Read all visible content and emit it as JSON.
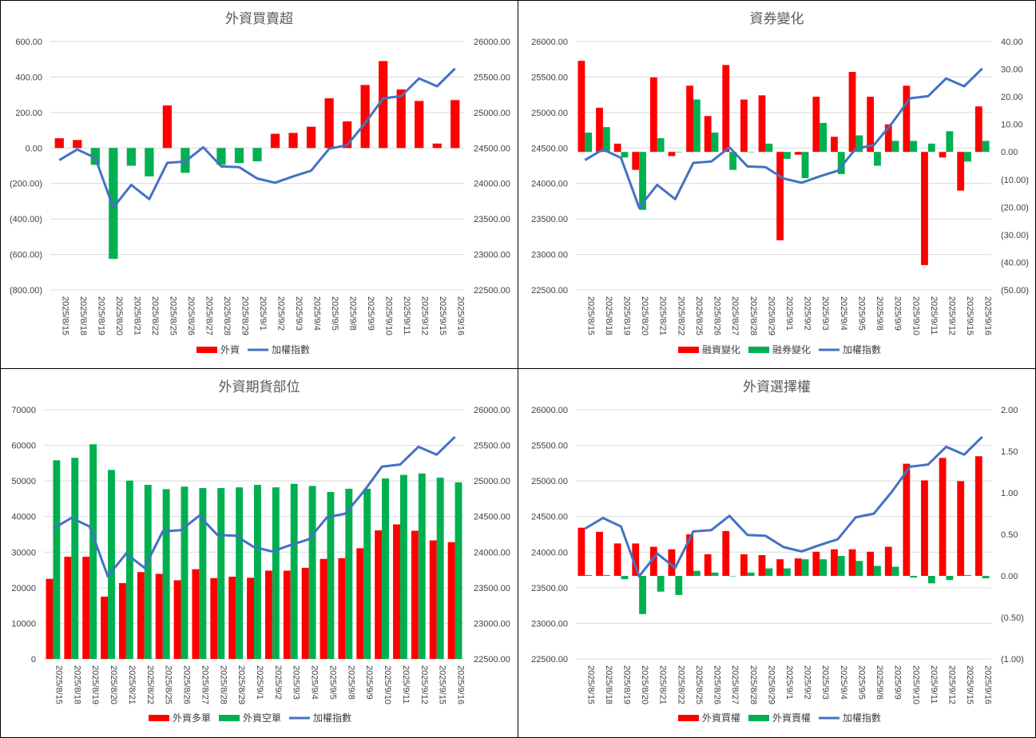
{
  "dates": [
    "2025/8/15",
    "2025/8/18",
    "2025/8/19",
    "2025/8/20",
    "2025/8/21",
    "2025/8/22",
    "2025/8/25",
    "2025/8/26",
    "2025/8/27",
    "2025/8/28",
    "2025/8/29",
    "2025/9/1",
    "2025/9/2",
    "2025/9/3",
    "2025/9/4",
    "2025/9/5",
    "2025/9/8",
    "2025/9/9",
    "2025/9/10",
    "2025/9/11",
    "2025/9/12",
    "2025/9/15",
    "2025/9/16"
  ],
  "colors": {
    "red": "#ff0000",
    "green": "#00b050",
    "blue": "#4472c4",
    "grid": "#d9d9d9",
    "neg_text": "#ff0000"
  },
  "chart_data": [
    {
      "type": "bar",
      "title": "外資買賣超",
      "ylim": [
        -800,
        600
      ],
      "yticks": [
        "600.00",
        "400.00",
        "200.00",
        "0.00",
        "(200.00)",
        "(400.00)",
        "(600.00)",
        "(800.00)"
      ],
      "y2lim": [
        22500,
        26000
      ],
      "y2ticks": [
        "26000.00",
        "25500.00",
        "25000.00",
        "24500.00",
        "24000.00",
        "23500.00",
        "23000.00",
        "22500.00"
      ],
      "bar_mode": "posneg",
      "series": [
        {
          "name": "外資",
          "values": [
            55,
            45,
            -95,
            -625,
            -100,
            -160,
            240,
            -140,
            0,
            -95,
            -85,
            -75,
            80,
            85,
            120,
            280,
            150,
            355,
            490,
            330,
            265,
            25,
            270
          ]
        },
        {
          "name": "加權指數",
          "axis": "right",
          "line": true,
          "values": [
            24330,
            24480,
            24360,
            23660,
            23980,
            23780,
            24290,
            24310,
            24510,
            24240,
            24230,
            24070,
            24010,
            24100,
            24180,
            24490,
            24540,
            24850,
            25200,
            25230,
            25480,
            25370,
            25620
          ]
        }
      ]
    },
    {
      "type": "bar",
      "title": "資券變化",
      "ylim": [
        22500,
        26000
      ],
      "yticks": [
        "26000.00",
        "25500.00",
        "25000.00",
        "24500.00",
        "24000.00",
        "23500.00",
        "23000.00",
        "22500.00"
      ],
      "y2lim": [
        -50,
        40
      ],
      "y2ticks": [
        "40.00",
        "30.00",
        "20.00",
        "10.00",
        "0.00",
        "(10.00)",
        "(20.00)",
        "(30.00)",
        "(40.00)",
        "(50.00)"
      ],
      "series": [
        {
          "name": "融資變化",
          "axis": "right",
          "values": [
            33,
            16,
            3,
            -6.5,
            27,
            -1.5,
            24,
            13,
            31.5,
            19,
            20.5,
            -32,
            -1,
            20,
            5.5,
            29,
            20,
            10,
            24,
            -41,
            -2,
            -14,
            16.5
          ]
        },
        {
          "name": "融券變化",
          "axis": "right",
          "values": [
            7,
            9,
            -2,
            -21,
            5,
            0,
            19,
            7,
            -6.5,
            0,
            3,
            -2.5,
            -9.5,
            10.5,
            -8,
            6,
            -5,
            4,
            4,
            3,
            7.5,
            -3.5,
            4
          ]
        },
        {
          "name": "加權指數",
          "axis": "left",
          "line": true,
          "values": [
            24330,
            24480,
            24360,
            23660,
            23980,
            23780,
            24290,
            24310,
            24510,
            24240,
            24230,
            24070,
            24010,
            24100,
            24180,
            24490,
            24540,
            24850,
            25200,
            25230,
            25480,
            25370,
            25620
          ]
        }
      ]
    },
    {
      "type": "bar",
      "title": "外資期貨部位",
      "ylim": [
        0,
        70000
      ],
      "yticks": [
        "70000",
        "60000",
        "50000",
        "40000",
        "30000",
        "20000",
        "10000",
        "0"
      ],
      "y2lim": [
        22500,
        26000
      ],
      "y2ticks": [
        "26000.00",
        "25500.00",
        "25000.00",
        "24500.00",
        "24000.00",
        "23500.00",
        "23000.00",
        "22500.00"
      ],
      "series": [
        {
          "name": "外資多單",
          "values": [
            22500,
            28700,
            28700,
            17500,
            21300,
            24400,
            23900,
            22100,
            25200,
            22700,
            23100,
            22800,
            24800,
            24800,
            25600,
            28100,
            28300,
            31100,
            36100,
            37800,
            36000,
            33300,
            32800
          ]
        },
        {
          "name": "外資空單",
          "values": [
            55800,
            56500,
            60300,
            53100,
            50100,
            48900,
            47700,
            48400,
            48000,
            48000,
            48200,
            48900,
            48200,
            49200,
            48600,
            46900,
            47800,
            47800,
            50700,
            51700,
            52100,
            50900,
            49600
          ]
        },
        {
          "name": "加權指數",
          "axis": "right",
          "line": true,
          "values": [
            24330,
            24480,
            24360,
            23660,
            23980,
            23780,
            24290,
            24310,
            24510,
            24240,
            24230,
            24070,
            24010,
            24100,
            24180,
            24490,
            24540,
            24850,
            25200,
            25230,
            25480,
            25370,
            25620
          ]
        }
      ]
    },
    {
      "type": "bar",
      "title": "外資選擇權",
      "ylim": [
        22500,
        26000
      ],
      "yticks": [
        "26000.00",
        "25500.00",
        "25000.00",
        "24500.00",
        "24000.00",
        "23500.00",
        "23000.00",
        "22500.00"
      ],
      "y2lim": [
        -1,
        2
      ],
      "y2ticks": [
        "2.00",
        "1.50",
        "1.00",
        "0.50",
        "0.00",
        "(0.50)",
        "(1.00)"
      ],
      "series": [
        {
          "name": "外資買權",
          "axis": "right",
          "values": [
            0.58,
            0.53,
            0.39,
            0.39,
            0.35,
            0.32,
            0.5,
            0.26,
            0.54,
            0.26,
            0.25,
            0.2,
            0.21,
            0.29,
            0.32,
            0.32,
            0.29,
            0.35,
            1.35,
            1.15,
            1.42,
            1.14,
            1.44
          ]
        },
        {
          "name": "外資賣權",
          "axis": "right",
          "values": [
            0.01,
            0.01,
            -0.04,
            -0.46,
            -0.19,
            -0.23,
            0.06,
            0.04,
            0,
            0.04,
            0.09,
            0.09,
            0.2,
            0.2,
            0.24,
            0.18,
            0.12,
            0.11,
            -0.02,
            -0.09,
            -0.05,
            0.01,
            -0.03
          ]
        },
        {
          "name": "加權指數",
          "axis": "left",
          "line": true,
          "values": [
            24330,
            24480,
            24360,
            23660,
            23980,
            23780,
            24290,
            24310,
            24510,
            24240,
            24230,
            24070,
            24010,
            24100,
            24180,
            24490,
            24540,
            24850,
            25200,
            25230,
            25480,
            25370,
            25620
          ]
        }
      ]
    }
  ]
}
